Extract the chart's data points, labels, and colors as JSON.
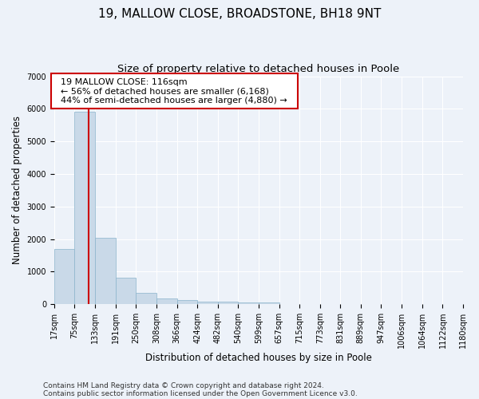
{
  "title_line1": "19, MALLOW CLOSE, BROADSTONE, BH18 9NT",
  "title_line2": "Size of property relative to detached houses in Poole",
  "xlabel": "Distribution of detached houses by size in Poole",
  "ylabel": "Number of detached properties",
  "footnote1": "Contains HM Land Registry data © Crown copyright and database right 2024.",
  "footnote2": "Contains public sector information licensed under the Open Government Licence v3.0.",
  "annotation_line1": "19 MALLOW CLOSE: 116sqm",
  "annotation_line2": "← 56% of detached houses are smaller (6,168)",
  "annotation_line3": "44% of semi-detached houses are larger (4,880) →",
  "bar_bins": [
    17,
    75,
    133,
    191,
    250,
    308,
    366,
    424,
    482,
    540,
    599,
    657,
    715,
    773,
    831,
    889,
    947,
    1006,
    1064,
    1122,
    1180
  ],
  "bar_heights": [
    1700,
    5900,
    2050,
    820,
    350,
    175,
    120,
    90,
    75,
    65,
    55,
    0,
    0,
    0,
    0,
    0,
    0,
    0,
    0,
    0,
    0
  ],
  "bar_color": "#c9d9e8",
  "bar_edge_color": "#8ab4cc",
  "red_line_x": 116,
  "ylim": [
    0,
    7000
  ],
  "yticks": [
    0,
    1000,
    2000,
    3000,
    4000,
    5000,
    6000,
    7000
  ],
  "bg_color": "#edf2f9",
  "plot_bg_color": "#edf2f9",
  "annotation_box_color": "#ffffff",
  "annotation_box_edge": "#cc0000",
  "red_line_color": "#cc0000",
  "title_fontsize": 11,
  "subtitle_fontsize": 9.5,
  "axis_label_fontsize": 8.5,
  "tick_fontsize": 7,
  "annotation_fontsize": 8,
  "footnote_fontsize": 6.5
}
